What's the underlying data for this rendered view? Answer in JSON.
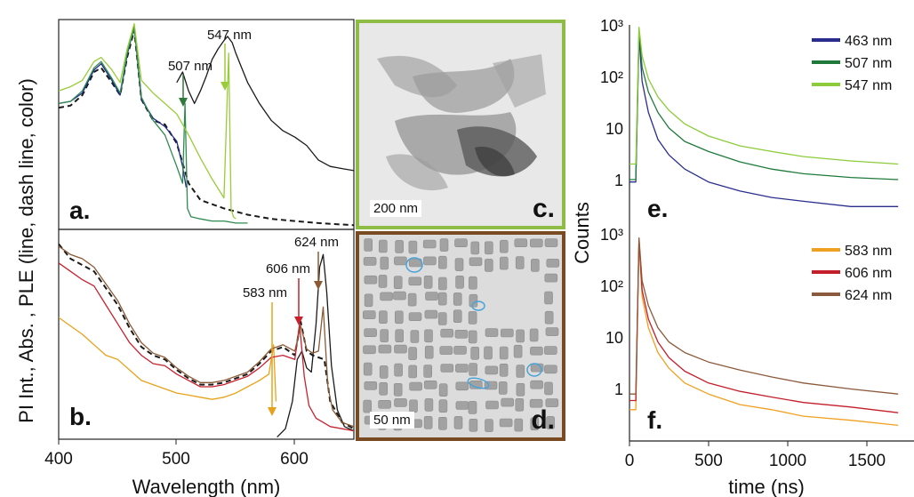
{
  "shared_labels": {
    "left_ylabel": "PI Int., Abs. , PLE (line, dash line, color)",
    "left_xlabel": "Wavelength (nm)",
    "right_ylabel": "Counts",
    "right_xlabel": "time (ns)"
  },
  "chart_data": [
    {
      "panel": "a.",
      "type": "line",
      "xlim": [
        400,
        650
      ],
      "xticks": [
        "400",
        "500",
        "600"
      ],
      "annotations": [
        {
          "text": "507 nm",
          "x": 507
        },
        {
          "text": "547 nm",
          "x": 547
        }
      ],
      "series": [
        {
          "role": "PL",
          "color": "#1a1a1a",
          "x": [
            500,
            505,
            510,
            515,
            520,
            525,
            530,
            535,
            540,
            543,
            547,
            550,
            555,
            560,
            570,
            580,
            590,
            600,
            610,
            620,
            630,
            640,
            650
          ],
          "y": [
            0.7,
            0.75,
            0.66,
            0.6,
            0.66,
            0.73,
            0.81,
            0.86,
            0.9,
            0.92,
            0.89,
            0.84,
            0.77,
            0.7,
            0.6,
            0.52,
            0.47,
            0.44,
            0.4,
            0.33,
            0.3,
            0.29,
            0.28
          ]
        },
        {
          "role": "Abs",
          "color": "#1a1a1a",
          "dash": true,
          "x": [
            400,
            410,
            420,
            430,
            436,
            445,
            452,
            458,
            464,
            470,
            480,
            490,
            500,
            510,
            520,
            540,
            560,
            580,
            600,
            620,
            650
          ],
          "y": [
            0.58,
            0.59,
            0.64,
            0.75,
            0.77,
            0.7,
            0.64,
            0.82,
            0.95,
            0.62,
            0.52,
            0.5,
            0.41,
            0.22,
            0.14,
            0.1,
            0.07,
            0.05,
            0.04,
            0.03,
            0.02
          ]
        },
        {
          "role": "PLE 463 nm",
          "color": "#1e2a8a",
          "x": [
            400,
            410,
            420,
            430,
            436,
            445,
            452,
            458,
            464,
            470,
            480,
            490,
            500,
            505,
            508
          ],
          "y": [
            0.6,
            0.61,
            0.65,
            0.76,
            0.79,
            0.71,
            0.64,
            0.83,
            0.97,
            0.62,
            0.53,
            0.49,
            0.42,
            0.3,
            0.2
          ]
        },
        {
          "role": "PLE 507 nm",
          "color": "#2e8a4e",
          "x": [
            400,
            410,
            420,
            430,
            436,
            445,
            452,
            458,
            464,
            470,
            480,
            490,
            500,
            505,
            507,
            509,
            512,
            520,
            530,
            540,
            550,
            560
          ],
          "y": [
            0.6,
            0.61,
            0.66,
            0.77,
            0.8,
            0.72,
            0.65,
            0.84,
            0.96,
            0.63,
            0.52,
            0.45,
            0.3,
            0.22,
            0.6,
            0.1,
            0.06,
            0.05,
            0.04,
            0.04,
            0.03,
            0.03
          ]
        },
        {
          "role": "PLE 547 nm",
          "color": "#9acc3a",
          "x": [
            400,
            410,
            420,
            430,
            436,
            445,
            452,
            458,
            464,
            470,
            480,
            490,
            500,
            510,
            520,
            530,
            540,
            544,
            546,
            548,
            550
          ],
          "y": [
            0.66,
            0.68,
            0.71,
            0.8,
            0.82,
            0.76,
            0.7,
            0.86,
            0.98,
            0.71,
            0.65,
            0.6,
            0.55,
            0.45,
            0.34,
            0.24,
            0.15,
            0.84,
            0.1,
            0.06,
            0.05
          ]
        }
      ]
    },
    {
      "panel": "b.",
      "type": "line",
      "xlim": [
        400,
        650
      ],
      "xticks": [
        "400",
        "500",
        "600"
      ],
      "annotations": [
        {
          "text": "583 nm",
          "x": 583
        },
        {
          "text": "606 nm",
          "x": 606
        },
        {
          "text": "624 nm",
          "x": 624
        }
      ],
      "series": [
        {
          "role": "PL",
          "color": "#1a1a1a",
          "x": [
            585,
            592,
            598,
            602,
            606,
            610,
            614,
            618,
            621,
            624,
            627,
            631,
            636,
            642,
            650
          ],
          "y": [
            0.01,
            0.05,
            0.18,
            0.38,
            0.42,
            0.34,
            0.32,
            0.55,
            0.82,
            0.88,
            0.7,
            0.35,
            0.14,
            0.06,
            0.04
          ]
        },
        {
          "role": "Abs",
          "color": "#1a1a1a",
          "dash": true,
          "x": [
            400,
            410,
            420,
            430,
            440,
            450,
            460,
            470,
            480,
            490,
            500,
            510,
            520,
            530,
            540,
            550,
            560,
            570,
            580,
            590,
            600,
            605,
            610,
            615,
            620,
            625,
            630,
            640,
            650
          ],
          "y": [
            0.93,
            0.86,
            0.83,
            0.8,
            0.72,
            0.64,
            0.53,
            0.44,
            0.4,
            0.38,
            0.33,
            0.29,
            0.26,
            0.26,
            0.27,
            0.29,
            0.31,
            0.36,
            0.42,
            0.44,
            0.4,
            0.56,
            0.42,
            0.4,
            0.39,
            0.38,
            0.18,
            0.08,
            0.05
          ]
        },
        {
          "role": "PLE 583 nm",
          "color": "#e8a21a",
          "x": [
            400,
            410,
            420,
            430,
            440,
            450,
            460,
            470,
            480,
            490,
            500,
            510,
            520,
            530,
            540,
            550,
            560,
            570,
            578,
            582,
            584
          ],
          "y": [
            0.58,
            0.54,
            0.5,
            0.45,
            0.4,
            0.38,
            0.33,
            0.28,
            0.26,
            0.24,
            0.22,
            0.21,
            0.2,
            0.19,
            0.2,
            0.22,
            0.25,
            0.28,
            0.31,
            0.45,
            0.18
          ]
        },
        {
          "role": "PLE 606 nm",
          "color": "#c8202e",
          "x": [
            400,
            410,
            420,
            430,
            440,
            450,
            460,
            470,
            480,
            490,
            500,
            510,
            520,
            530,
            540,
            550,
            560,
            570,
            580,
            590,
            600,
            604,
            608,
            612,
            618,
            624,
            630,
            640,
            650
          ],
          "y": [
            0.84,
            0.8,
            0.76,
            0.73,
            0.64,
            0.55,
            0.46,
            0.4,
            0.36,
            0.35,
            0.31,
            0.28,
            0.25,
            0.25,
            0.26,
            0.28,
            0.3,
            0.34,
            0.39,
            0.4,
            0.38,
            0.55,
            0.3,
            0.16,
            0.1,
            0.08,
            0.06,
            0.05,
            0.04
          ]
        },
        {
          "role": "PLE 624 nm",
          "color": "#8a5a35",
          "x": [
            400,
            410,
            420,
            430,
            440,
            450,
            460,
            470,
            480,
            490,
            500,
            510,
            520,
            530,
            540,
            550,
            560,
            570,
            580,
            590,
            600,
            605,
            610,
            615,
            620,
            624,
            628,
            632,
            640,
            650
          ],
          "y": [
            0.92,
            0.88,
            0.86,
            0.82,
            0.74,
            0.66,
            0.55,
            0.46,
            0.41,
            0.39,
            0.34,
            0.3,
            0.27,
            0.27,
            0.28,
            0.3,
            0.32,
            0.37,
            0.43,
            0.45,
            0.42,
            0.54,
            0.43,
            0.41,
            0.42,
            0.63,
            0.25,
            0.14,
            0.08,
            0.06
          ]
        }
      ]
    },
    {
      "panel": "e.",
      "type": "line",
      "scale": "log",
      "ylim": [
        0.1,
        1000
      ],
      "yticks": [
        "10³",
        "10²",
        "10",
        "1"
      ],
      "xlim": [
        0,
        1800
      ],
      "legend": "top-right",
      "series": [
        {
          "name": "463 nm",
          "color": "#2b2d8e",
          "x": [
            0,
            40,
            60,
            80,
            120,
            180,
            250,
            350,
            500,
            700,
            900,
            1100,
            1400,
            1700
          ],
          "y": [
            0.9,
            0.9,
            600,
            80,
            20,
            6,
            3,
            1.6,
            0.9,
            0.6,
            0.45,
            0.38,
            0.3,
            0.3
          ]
        },
        {
          "name": "507 nm",
          "color": "#1f7a3a",
          "x": [
            0,
            40,
            60,
            80,
            120,
            180,
            250,
            350,
            500,
            700,
            900,
            1100,
            1400,
            1700
          ],
          "y": [
            1,
            1,
            800,
            150,
            50,
            20,
            10,
            5.5,
            3.5,
            2.2,
            1.6,
            1.3,
            1.1,
            1.0
          ]
        },
        {
          "name": "547 nm",
          "color": "#8ccc3a",
          "x": [
            0,
            40,
            60,
            80,
            120,
            180,
            250,
            350,
            500,
            700,
            900,
            1100,
            1400,
            1700
          ],
          "y": [
            2,
            2,
            900,
            250,
            90,
            40,
            22,
            12,
            7,
            4.5,
            3.5,
            2.8,
            2.3,
            2.0
          ]
        }
      ]
    },
    {
      "panel": "f.",
      "type": "line",
      "scale": "log",
      "ylim": [
        0.1,
        1000
      ],
      "yticks": [
        "10³",
        "10²",
        "10",
        "1"
      ],
      "xlim": [
        0,
        1800
      ],
      "xticks": [
        "0",
        "500",
        "1000",
        "1500"
      ],
      "legend": "top-right",
      "series": [
        {
          "name": "583 nm",
          "color": "#f0a020",
          "x": [
            0,
            40,
            60,
            80,
            120,
            180,
            250,
            350,
            500,
            700,
            900,
            1100,
            1400,
            1700
          ],
          "y": [
            0.4,
            0.4,
            700,
            60,
            15,
            5,
            2.5,
            1.3,
            0.8,
            0.5,
            0.4,
            0.3,
            0.25,
            0.2
          ]
        },
        {
          "name": "606 nm",
          "color": "#c41e2a",
          "x": [
            0,
            40,
            60,
            80,
            120,
            180,
            250,
            350,
            500,
            700,
            900,
            1100,
            1400,
            1700
          ],
          "y": [
            0.6,
            0.6,
            750,
            80,
            22,
            8,
            4,
            2.2,
            1.3,
            0.9,
            0.7,
            0.55,
            0.45,
            0.35
          ]
        },
        {
          "name": "624 nm",
          "color": "#8b5a3c",
          "x": [
            0,
            40,
            60,
            80,
            120,
            180,
            250,
            350,
            500,
            700,
            900,
            1100,
            1400,
            1700
          ],
          "y": [
            0.8,
            0.8,
            800,
            120,
            40,
            15,
            8,
            5,
            3.3,
            2.3,
            1.7,
            1.3,
            1.0,
            0.8
          ]
        }
      ]
    }
  ],
  "micrographs": [
    {
      "panel": "c.",
      "scale_label": "200 nm",
      "border_color": "#8fbc45"
    },
    {
      "panel": "d.",
      "scale_label": "50 nm",
      "border_color": "#7a4a22"
    }
  ]
}
